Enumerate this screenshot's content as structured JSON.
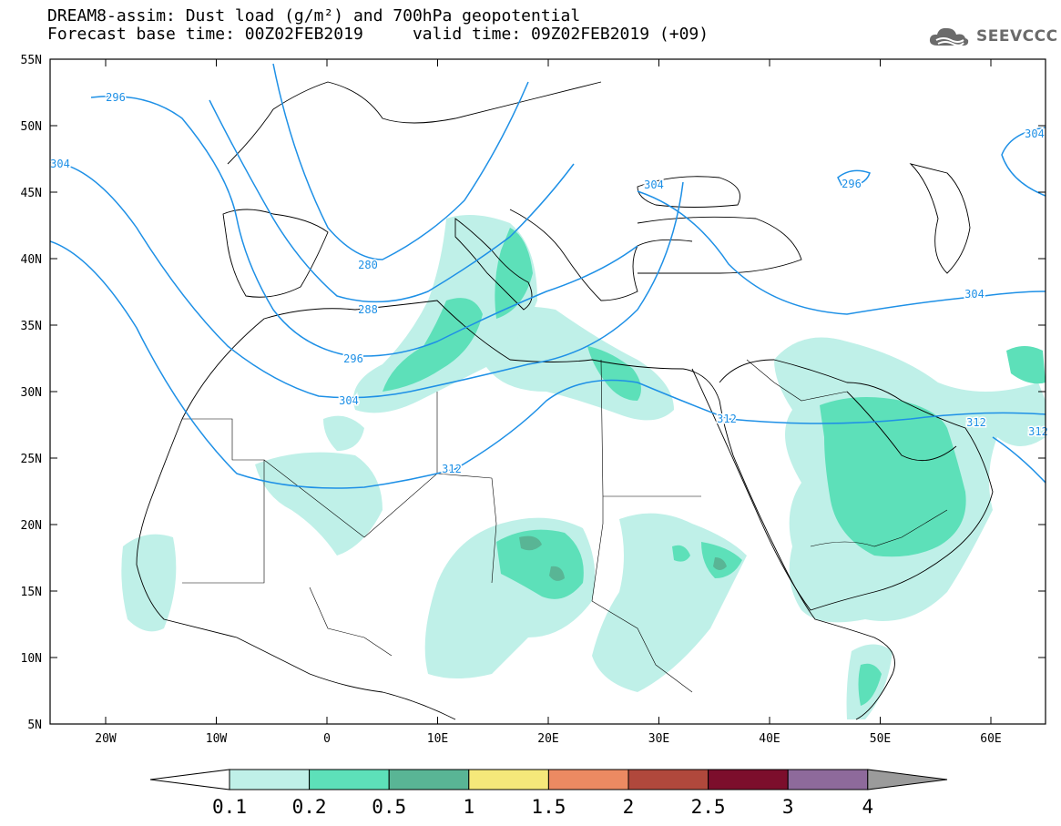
{
  "title": {
    "line1": "DREAM8-assim: Dust load (g/m²) and 700hPa geopotential",
    "line2": "Forecast base time: 00Z02FEB2019     valid time: 09Z02FEB2019 (+09)"
  },
  "logo": {
    "icon": "cloud-logo-icon",
    "text": "SEEVCCC"
  },
  "map": {
    "lat_labels": [
      "55N",
      "50N",
      "45N",
      "40N",
      "35N",
      "30N",
      "25N",
      "20N",
      "15N",
      "10N",
      "5N"
    ],
    "lon_labels": [
      "20W",
      "10W",
      "0",
      "10E",
      "20E",
      "30E",
      "40E",
      "50E",
      "60E"
    ],
    "contour_labels": [
      "296",
      "304",
      "304",
      "296",
      "280",
      "288",
      "296",
      "304",
      "312",
      "304",
      "312",
      "312",
      "304",
      "312"
    ],
    "colors": {
      "contour": "#1e90e6",
      "dust_01": "#bff0e8",
      "dust_02": "#5de0b9",
      "dust_05": "#59b595",
      "coast": "#000000"
    }
  },
  "colorbar": {
    "ticks": [
      "0.1",
      "0.2",
      "0.5",
      "1",
      "1.5",
      "2",
      "2.5",
      "3",
      "4"
    ],
    "colors": [
      "#bff0e8",
      "#5de0b9",
      "#59b595",
      "#f5e87a",
      "#ec8a62",
      "#b0483c",
      "#7c0e2c",
      "#8e6a9b"
    ],
    "under_color": "#ffffff",
    "over_color": "#9b9b9b"
  }
}
